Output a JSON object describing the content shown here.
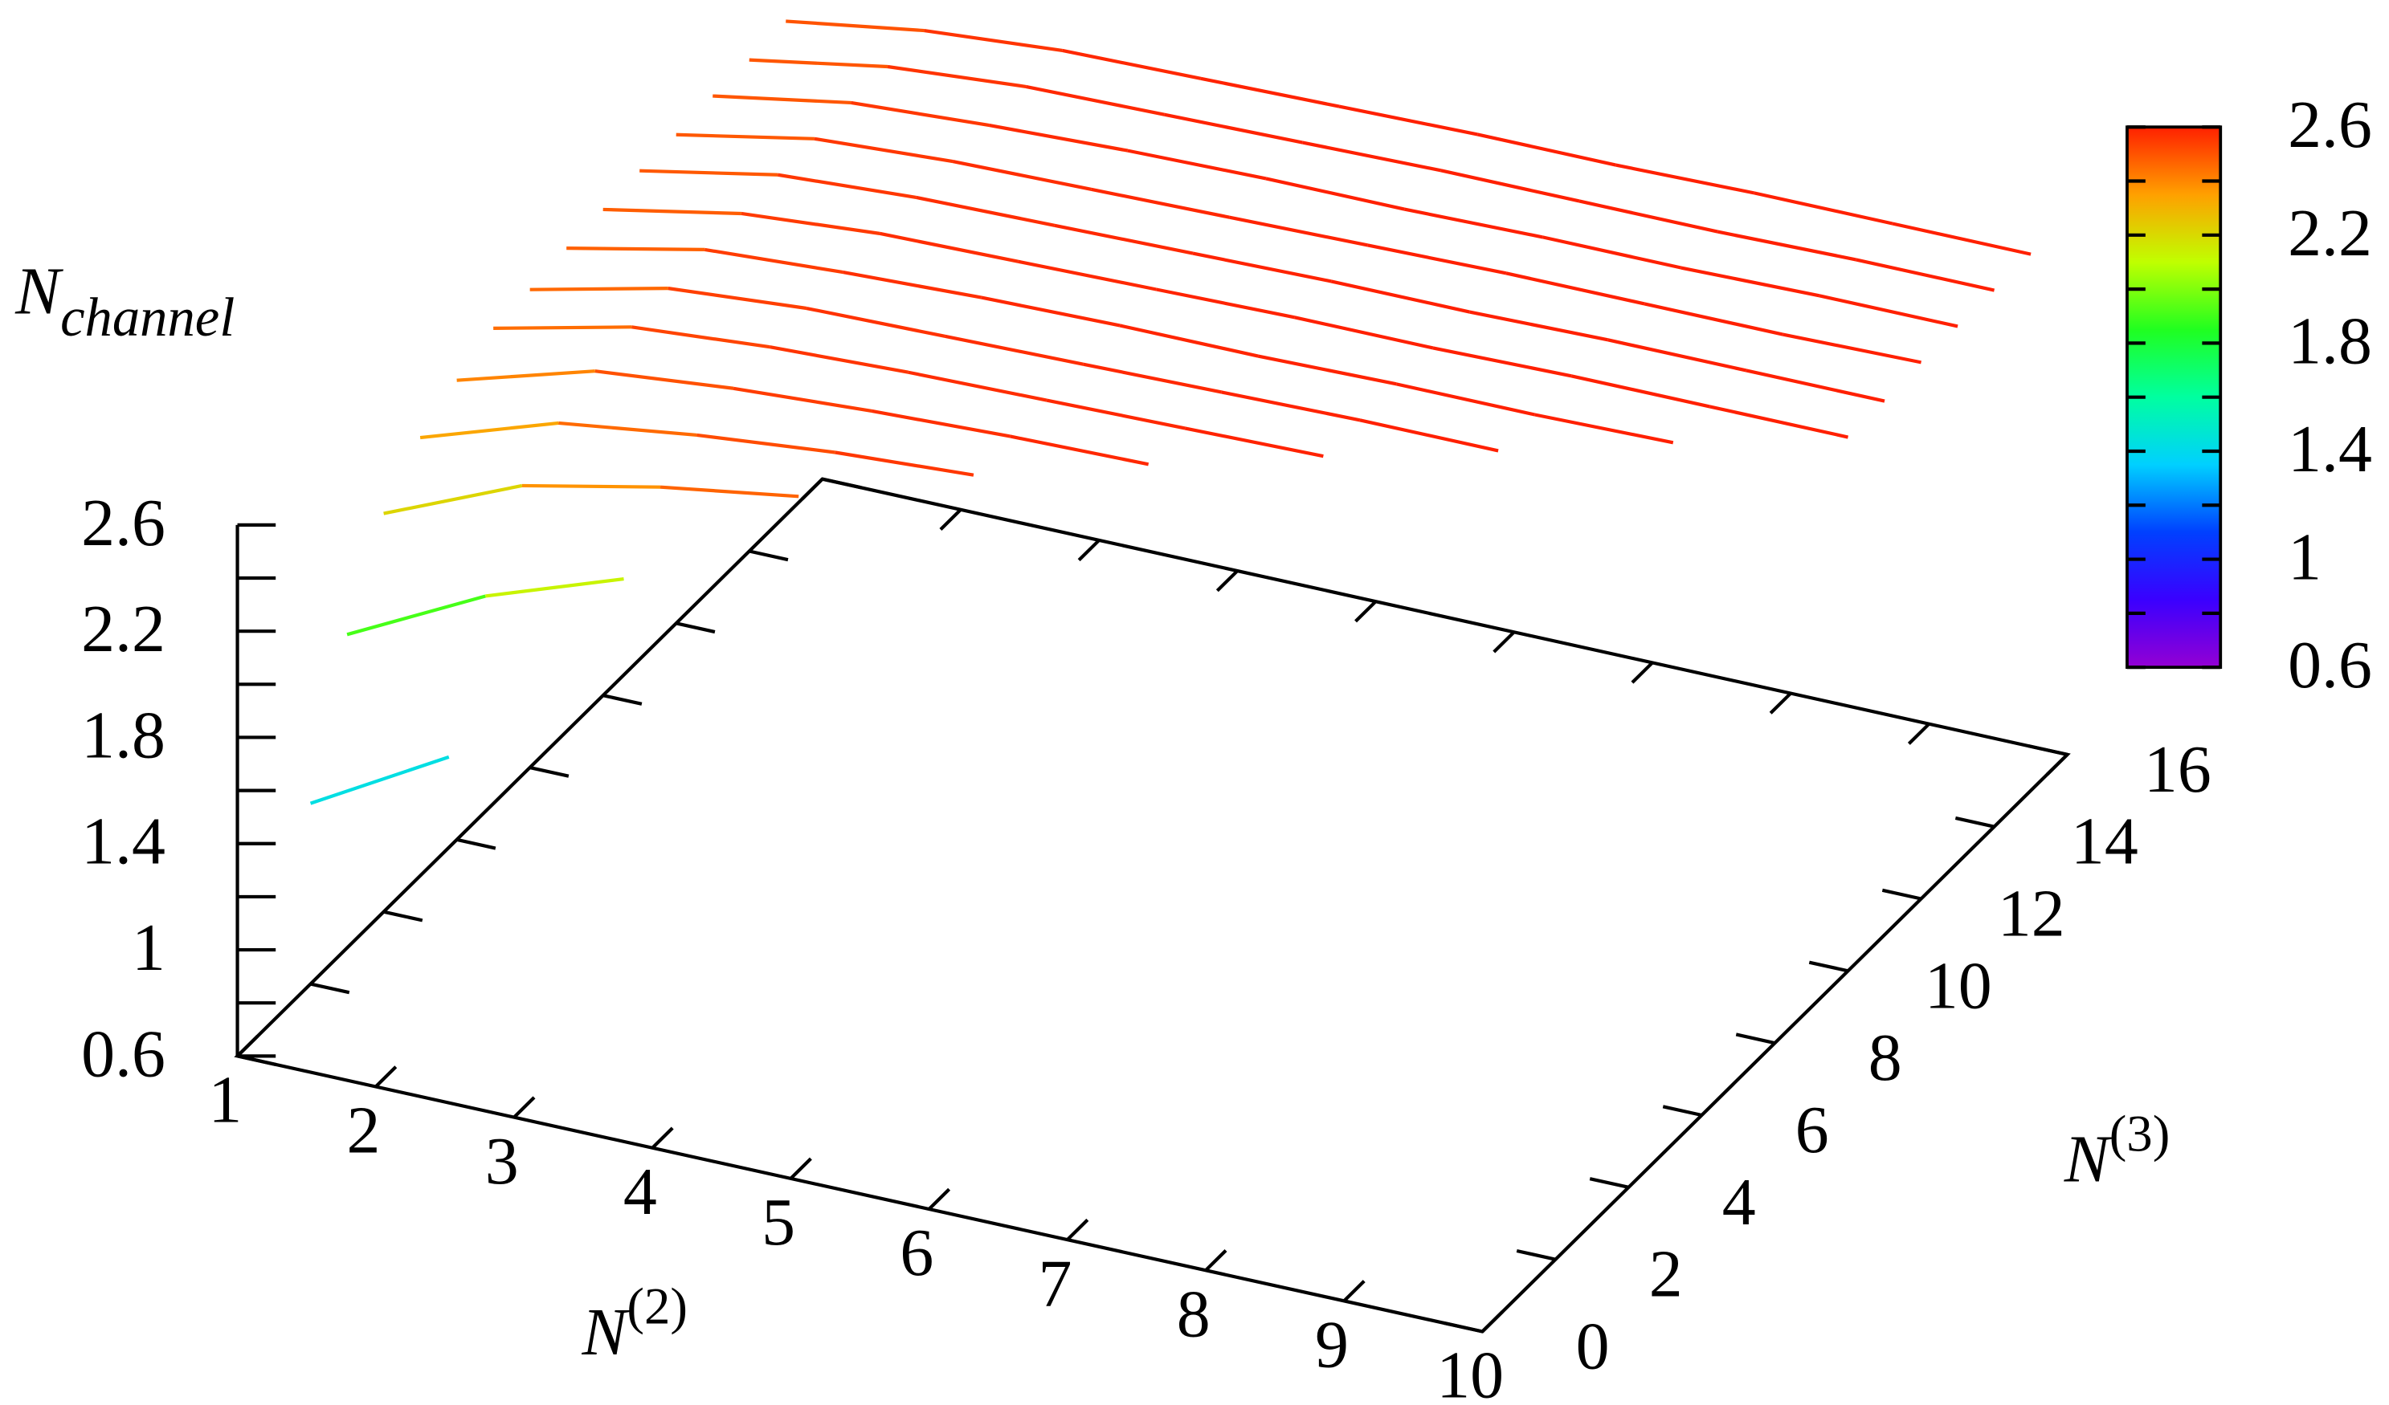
{
  "chart_data": {
    "type": "line3d",
    "xlabel": {
      "base": "N",
      "superscript": "(2)"
    },
    "ylabel": {
      "base": "N",
      "superscript": "(3)"
    },
    "zlabel": {
      "base": "N",
      "subscript": "channel"
    },
    "xlim": [
      1,
      10
    ],
    "xticks": [
      1,
      2,
      3,
      4,
      5,
      6,
      7,
      8,
      9,
      10
    ],
    "ylim": [
      0,
      16
    ],
    "yticks": [
      0,
      2,
      4,
      6,
      8,
      10,
      12,
      14,
      16
    ],
    "zlim": [
      0.6,
      2.6
    ],
    "zticks": [
      0.6,
      1,
      1.4,
      1.8,
      2.2,
      2.6
    ],
    "zminorticks": [
      0.8,
      1.2,
      1.6,
      2.0,
      2.4
    ],
    "cblim": [
      0.6,
      2.6
    ],
    "cbticks": [
      0.6,
      1,
      1.4,
      1.8,
      2.2,
      2.6
    ],
    "cbminorticks": [
      0.8,
      1.2,
      1.6,
      2.0,
      2.4
    ],
    "palette": [
      "#9400d3",
      "#3a00ff",
      "#0040ff",
      "#00d0ff",
      "#00ffa0",
      "#20ff20",
      "#c0ff00",
      "#ffa000",
      "#ff2000"
    ],
    "series": [
      {
        "y": 2,
        "x": [
          1,
          2
        ],
        "values": [
          1.28,
          1.57
        ]
      },
      {
        "y": 3,
        "x": [
          1,
          2,
          3
        ],
        "values": [
          1.78,
          2.04,
          2.22
        ]
      },
      {
        "y": 4,
        "x": [
          1,
          2,
          3,
          4
        ],
        "values": [
          2.1,
          2.32,
          2.43,
          2.51
        ]
      },
      {
        "y": 5,
        "x": [
          1,
          2,
          3,
          4,
          5
        ],
        "values": [
          2.25,
          2.42,
          2.49,
          2.54,
          2.57
        ]
      },
      {
        "y": 6,
        "x": [
          1,
          2,
          3,
          4,
          5,
          6
        ],
        "values": [
          2.33,
          2.48,
          2.53,
          2.56,
          2.58,
          2.59
        ]
      },
      {
        "y": 7,
        "x": [
          1,
          2,
          3,
          4,
          5,
          6,
          7
        ],
        "values": [
          2.39,
          2.51,
          2.55,
          2.57,
          2.58,
          2.59,
          2.6
        ]
      },
      {
        "y": 8,
        "x": [
          1,
          2,
          3,
          4,
          5,
          6,
          7,
          8
        ],
        "values": [
          2.4,
          2.52,
          2.56,
          2.57,
          2.58,
          2.59,
          2.6,
          2.6
        ]
      },
      {
        "y": 9,
        "x": [
          1,
          2,
          3,
          4,
          5,
          6,
          7,
          8,
          9
        ],
        "values": [
          2.42,
          2.53,
          2.56,
          2.58,
          2.59,
          2.59,
          2.6,
          2.6,
          2.61
        ]
      },
      {
        "y": 10,
        "x": [
          1,
          2,
          3,
          4,
          5,
          6,
          7,
          8,
          9,
          10
        ],
        "values": [
          2.43,
          2.53,
          2.57,
          2.58,
          2.59,
          2.6,
          2.6,
          2.61,
          2.61,
          2.61
        ]
      },
      {
        "y": 11,
        "x": [
          1,
          2,
          3,
          4,
          5,
          6,
          7,
          8,
          9,
          10
        ],
        "values": [
          2.44,
          2.54,
          2.57,
          2.58,
          2.59,
          2.6,
          2.6,
          2.61,
          2.61,
          2.61
        ]
      },
      {
        "y": 12,
        "x": [
          1,
          2,
          3,
          4,
          5,
          6,
          7,
          8,
          9,
          10
        ],
        "values": [
          2.44,
          2.54,
          2.57,
          2.58,
          2.59,
          2.6,
          2.61,
          2.61,
          2.61,
          2.62
        ]
      },
      {
        "y": 13,
        "x": [
          1,
          2,
          3,
          4,
          5,
          6,
          7,
          8,
          9,
          10
        ],
        "values": [
          2.45,
          2.54,
          2.57,
          2.59,
          2.6,
          2.6,
          2.61,
          2.61,
          2.62,
          2.62
        ]
      },
      {
        "y": 14,
        "x": [
          1,
          2,
          3,
          4,
          5,
          6,
          7,
          8,
          9,
          10
        ],
        "values": [
          2.45,
          2.54,
          2.58,
          2.59,
          2.6,
          2.61,
          2.61,
          2.61,
          2.62,
          2.62
        ]
      },
      {
        "y": 15,
        "x": [
          1,
          2,
          3,
          4,
          5,
          6,
          7,
          8,
          9,
          10
        ],
        "values": [
          2.46,
          2.54,
          2.58,
          2.59,
          2.6,
          2.61,
          2.61,
          2.62,
          2.62,
          2.62
        ]
      }
    ]
  }
}
